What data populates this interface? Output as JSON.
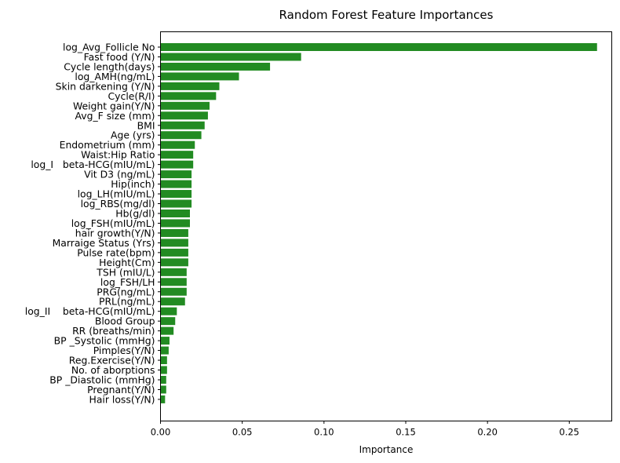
{
  "chart_data": {
    "type": "bar",
    "orientation": "horizontal",
    "title": "Random Forest Feature Importances",
    "xlabel": "Importance",
    "ylabel": "",
    "xlim": [
      0,
      0.276
    ],
    "xticks": [
      "0.00",
      "0.05",
      "0.10",
      "0.15",
      "0.20",
      "0.25"
    ],
    "bar_color": "#228b22",
    "grid": false,
    "legend": "none",
    "categories": [
      "log_Avg_Follicle No",
      "Fast food (Y/N)",
      "Cycle length(days)",
      "log_AMH(ng/mL)",
      "Skin darkening (Y/N)",
      "Cycle(R/I)",
      "Weight gain(Y/N)",
      "Avg_F size (mm)",
      "BMI",
      "Age (yrs)",
      "Endometrium (mm)",
      "Waist:Hip Ratio",
      "log_I   beta-HCG(mIU/mL)",
      "Vit D3 (ng/mL)",
      "Hip(inch)",
      "log_LH(mIU/mL)",
      "log_RBS(mg/dl)",
      "Hb(g/dl)",
      "log_FSH(mIU/mL)",
      "hair growth(Y/N)",
      "Marraige Status (Yrs)",
      "Pulse rate(bpm)",
      "Height(Cm)",
      "TSH (mIU/L)",
      "log_FSH/LH",
      "PRG(ng/mL)",
      "PRL(ng/mL)",
      "log_II    beta-HCG(mIU/mL)",
      "Blood Group",
      "RR (breaths/min)",
      "BP _Systolic (mmHg)",
      "Pimples(Y/N)",
      "Reg.Exercise(Y/N)",
      "No. of aborptions",
      "BP _Diastolic (mmHg)",
      "Pregnant(Y/N)",
      "Hair loss(Y/N)"
    ],
    "values": [
      0.267,
      0.086,
      0.067,
      0.048,
      0.036,
      0.034,
      0.03,
      0.029,
      0.027,
      0.025,
      0.021,
      0.02,
      0.02,
      0.019,
      0.019,
      0.019,
      0.019,
      0.018,
      0.018,
      0.017,
      0.017,
      0.017,
      0.017,
      0.016,
      0.016,
      0.016,
      0.015,
      0.01,
      0.009,
      0.008,
      0.0055,
      0.005,
      0.004,
      0.004,
      0.0035,
      0.0035,
      0.0028
    ]
  }
}
